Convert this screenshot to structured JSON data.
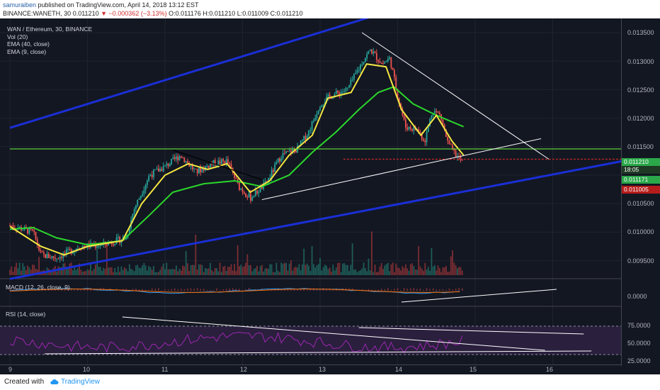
{
  "header": {
    "author": "samuraiben",
    "published_text": "published on TradingView.com, April 14, 2018 13:12 EST",
    "symbol": "BINANCE:WANETH, 30",
    "last": "0.011210",
    "change_arrow": "▼",
    "change": "−0.000362 (−3.13%)",
    "ohlc": "O:0.011176 H:0.011210 L:0.011009 C:0.011210"
  },
  "legend": {
    "title": "WAN / Ethereum, 30, BINANCE",
    "items": [
      "Vol (20)",
      "EMA (40, close)",
      "EMA (9, close)"
    ]
  },
  "panes": {
    "macd_label": "MACD (12, 26, close, 9)",
    "rsi_label": "RSI (14, close)"
  },
  "price_axis": {
    "ticks": [
      "0.013500",
      "0.013000",
      "0.012500",
      "0.012000",
      "0.011500",
      "0.011000",
      "0.010500",
      "0.010000",
      "0.009500"
    ],
    "badges": [
      "0.011210",
      "18:05",
      "0.011171",
      "0.011005"
    ],
    "macd_tick": "0.0000",
    "rsi_ticks": [
      "75.0000",
      "50.0000",
      "25.0000"
    ]
  },
  "time_axis": {
    "labels": [
      "9",
      "10",
      "11",
      "12",
      "13",
      "14",
      "15",
      "16"
    ]
  },
  "footer": {
    "created_with": "Created with",
    "brand": "TradingView"
  },
  "colors": {
    "bull": "#26a69a",
    "bear": "#ef5350",
    "ema40": "#2bd72b",
    "ema9": "#f5e642",
    "channel": "#1a2fd6",
    "support": "#5ccf3a",
    "resistance": "#c62828",
    "rsi": "#9c27b0"
  },
  "chart_data": {
    "type": "candlestick",
    "title": "WAN / Ethereum, 30, BINANCE",
    "x_labels": [
      "9",
      "10",
      "11",
      "12",
      "13",
      "14",
      "15",
      "16"
    ],
    "ylim": [
      0.0091,
      0.0137
    ],
    "key_levels": {
      "support": 0.01146,
      "resistance": 0.01128
    },
    "close_path": [
      {
        "x": 9.0,
        "y": 0.01012
      },
      {
        "x": 9.3,
        "y": 0.01
      },
      {
        "x": 9.4,
        "y": 0.0096
      },
      {
        "x": 9.6,
        "y": 0.00955
      },
      {
        "x": 9.9,
        "y": 0.00975
      },
      {
        "x": 10.2,
        "y": 0.00978
      },
      {
        "x": 10.5,
        "y": 0.0099
      },
      {
        "x": 10.6,
        "y": 0.0104
      },
      {
        "x": 10.8,
        "y": 0.011
      },
      {
        "x": 11.0,
        "y": 0.01115
      },
      {
        "x": 11.2,
        "y": 0.01135
      },
      {
        "x": 11.4,
        "y": 0.01105
      },
      {
        "x": 11.6,
        "y": 0.0112
      },
      {
        "x": 11.8,
        "y": 0.01125
      },
      {
        "x": 11.95,
        "y": 0.0108
      },
      {
        "x": 12.1,
        "y": 0.0106
      },
      {
        "x": 12.3,
        "y": 0.01085
      },
      {
        "x": 12.5,
        "y": 0.01135
      },
      {
        "x": 12.7,
        "y": 0.01145
      },
      {
        "x": 12.85,
        "y": 0.01175
      },
      {
        "x": 13.0,
        "y": 0.01225
      },
      {
        "x": 13.15,
        "y": 0.0124
      },
      {
        "x": 13.35,
        "y": 0.0125
      },
      {
        "x": 13.55,
        "y": 0.013
      },
      {
        "x": 13.65,
        "y": 0.0132
      },
      {
        "x": 13.8,
        "y": 0.01295
      },
      {
        "x": 13.9,
        "y": 0.01305
      },
      {
        "x": 14.0,
        "y": 0.0124
      },
      {
        "x": 14.1,
        "y": 0.01185
      },
      {
        "x": 14.25,
        "y": 0.0118
      },
      {
        "x": 14.35,
        "y": 0.0116
      },
      {
        "x": 14.45,
        "y": 0.01215
      },
      {
        "x": 14.55,
        "y": 0.01205
      },
      {
        "x": 14.65,
        "y": 0.01155
      },
      {
        "x": 14.75,
        "y": 0.01135
      },
      {
        "x": 14.85,
        "y": 0.01121
      }
    ],
    "ema9": [
      {
        "x": 9.0,
        "y": 0.0101
      },
      {
        "x": 9.4,
        "y": 0.00975
      },
      {
        "x": 9.7,
        "y": 0.0096
      },
      {
        "x": 10.0,
        "y": 0.00975
      },
      {
        "x": 10.45,
        "y": 0.00985
      },
      {
        "x": 10.7,
        "y": 0.0105
      },
      {
        "x": 11.0,
        "y": 0.011
      },
      {
        "x": 11.3,
        "y": 0.0112
      },
      {
        "x": 11.55,
        "y": 0.0111
      },
      {
        "x": 11.8,
        "y": 0.0112
      },
      {
        "x": 12.1,
        "y": 0.0107
      },
      {
        "x": 12.35,
        "y": 0.0109
      },
      {
        "x": 12.6,
        "y": 0.01135
      },
      {
        "x": 12.9,
        "y": 0.0117
      },
      {
        "x": 13.1,
        "y": 0.01235
      },
      {
        "x": 13.4,
        "y": 0.01245
      },
      {
        "x": 13.6,
        "y": 0.01295
      },
      {
        "x": 13.85,
        "y": 0.0129
      },
      {
        "x": 14.05,
        "y": 0.01215
      },
      {
        "x": 14.3,
        "y": 0.0117
      },
      {
        "x": 14.5,
        "y": 0.01205
      },
      {
        "x": 14.7,
        "y": 0.0116
      },
      {
        "x": 14.85,
        "y": 0.01135
      }
    ],
    "ema40": [
      {
        "x": 9.0,
        "y": 0.01005
      },
      {
        "x": 9.3,
        "y": 0.01008
      },
      {
        "x": 9.6,
        "y": 0.0099
      },
      {
        "x": 10.0,
        "y": 0.00978
      },
      {
        "x": 10.45,
        "y": 0.00985
      },
      {
        "x": 10.8,
        "y": 0.0103
      },
      {
        "x": 11.1,
        "y": 0.0107
      },
      {
        "x": 11.5,
        "y": 0.01085
      },
      {
        "x": 11.9,
        "y": 0.0109
      },
      {
        "x": 12.25,
        "y": 0.0108
      },
      {
        "x": 12.6,
        "y": 0.011
      },
      {
        "x": 12.9,
        "y": 0.0114
      },
      {
        "x": 13.2,
        "y": 0.01175
      },
      {
        "x": 13.5,
        "y": 0.01215
      },
      {
        "x": 13.75,
        "y": 0.01245
      },
      {
        "x": 13.95,
        "y": 0.01255
      },
      {
        "x": 14.2,
        "y": 0.01225
      },
      {
        "x": 14.5,
        "y": 0.01205
      },
      {
        "x": 14.85,
        "y": 0.01185
      }
    ]
  }
}
